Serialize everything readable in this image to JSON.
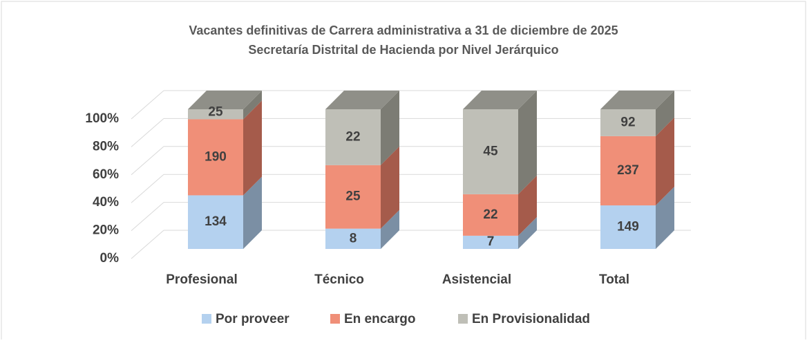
{
  "chart_data": {
    "type": "bar",
    "stacked": "percent",
    "title": "Vacantes definitivas de Carrera administrativa a 31 de diciembre de 2025",
    "subtitle": "Secretaría Distrital de Hacienda por Nivel Jerárquico",
    "categories": [
      "Profesional",
      "Técnico",
      "Asistencial",
      "Total"
    ],
    "series": [
      {
        "name": "Por proveer",
        "color": "#b4d1ef",
        "side_color": "#7b8fa4",
        "values": [
          134,
          8,
          7,
          149
        ]
      },
      {
        "name": "En encargo",
        "color": "#f08f78",
        "side_color": "#a55b4b",
        "values": [
          190,
          25,
          22,
          237
        ]
      },
      {
        "name": "En Provisionalidad",
        "color": "#bfbfb7",
        "side_color": "#7c7c74",
        "values": [
          25,
          22,
          45,
          92
        ]
      }
    ],
    "ylim": [
      0,
      100
    ],
    "yticks": [
      {
        "value": 0,
        "label": "0%"
      },
      {
        "value": 20,
        "label": "20%"
      },
      {
        "value": 40,
        "label": "40%"
      },
      {
        "value": 60,
        "label": "60%"
      },
      {
        "value": 80,
        "label": "80%"
      },
      {
        "value": 100,
        "label": "100%"
      }
    ],
    "grid": true,
    "legend": "bottom"
  }
}
